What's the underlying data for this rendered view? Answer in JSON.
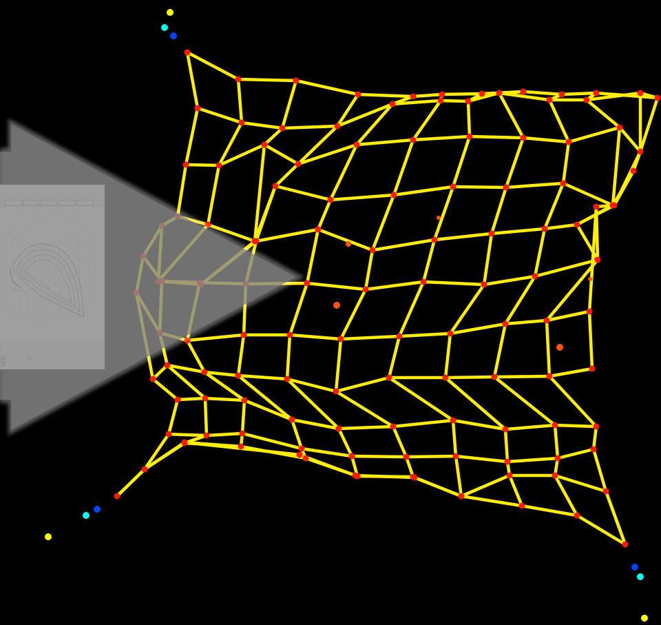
{
  "colors": {
    "background": "#000000",
    "mesh_edge": "#ffee00",
    "mesh_node": "#ff1a00",
    "free_marker": "#ff5500",
    "cyan_marker": "#00ffee",
    "blue_marker": "#0044ff",
    "yellow_marker": "#ffff00",
    "arrow_fill": "#7a7a7a"
  },
  "inset_window": {
    "toolbar_buttons": [
      "",
      "",
      "",
      "",
      ""
    ],
    "options": [
      "",
      "",
      "",
      ""
    ]
  },
  "icons": [
    "play-arrow-icon"
  ]
}
